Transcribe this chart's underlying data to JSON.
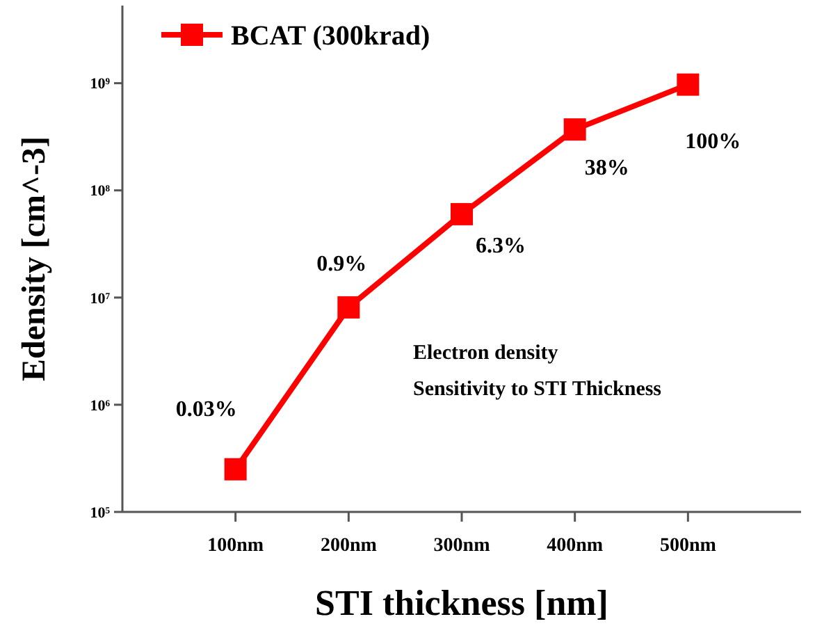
{
  "chart_data": {
    "type": "line",
    "xlabel": "STI thickness [nm]",
    "ylabel": "Edensity [cm^-3]",
    "x": [
      100,
      200,
      300,
      400,
      500
    ],
    "series": [
      {
        "name": "BCAT (300krad)",
        "color": "#ff0000",
        "values": [
          250000,
          8100000,
          60000000,
          370000000,
          970000000
        ]
      }
    ],
    "xlim": [
      0,
      600
    ],
    "xticks": [
      {
        "value": 100,
        "label": "100nm"
      },
      {
        "value": 200,
        "label": "200nm"
      },
      {
        "value": 300,
        "label": "300nm"
      },
      {
        "value": 400,
        "label": "400nm"
      },
      {
        "value": 500,
        "label": "500nm"
      }
    ],
    "ylim": [
      100000,
      5300000000
    ],
    "yticks": [
      {
        "value": 100000,
        "label": "10$^{5}$"
      },
      {
        "value": 1000000,
        "label": "10$^{6}$"
      },
      {
        "value": 10000000,
        "label": "10$^{7}$"
      },
      {
        "value": 100000000,
        "label": "10$^{8}$"
      },
      {
        "value": 1000000000,
        "label": "10$^{9}$"
      }
    ],
    "log": "y",
    "grid": false,
    "legend": "top left",
    "marker": "square",
    "line_style": "solid",
    "annotations": [
      {
        "text": "0.03%",
        "x": 100,
        "y": 250000
      },
      {
        "text": "0.9%",
        "x": 200,
        "y": 8100000
      },
      {
        "text": "6.3%",
        "x": 300,
        "y": 60000000
      },
      {
        "text": "38%",
        "x": 400,
        "y": 370000000
      },
      {
        "text": "100%",
        "x": 500,
        "y": 970000000
      },
      "Electron density\nSensitivity to STI Thickness"
    ]
  }
}
